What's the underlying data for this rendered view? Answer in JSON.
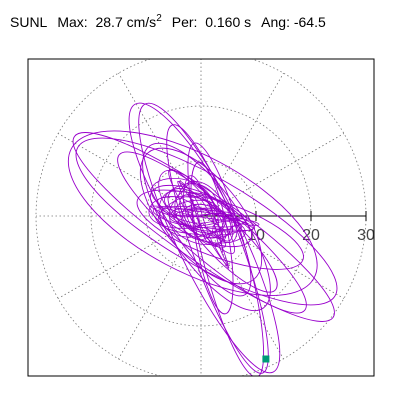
{
  "header": {
    "station": "SUNL",
    "max_label": "Max:",
    "max_value": "28.7",
    "max_unit": "cm/s",
    "max_unit_exp": "2",
    "per_label": "Per:",
    "per_value": "0.160 s",
    "ang_label": "Ang:",
    "ang_value": "-64.5"
  },
  "chart_data": {
    "type": "polar-hodogram",
    "title": "SUNL",
    "radial_ticks": [
      "10",
      "20",
      "30"
    ],
    "radial_tick_values": [
      10,
      20,
      30
    ],
    "r_max": 30,
    "angular_grid_step_deg": 30,
    "grid": true,
    "orbit_color": "#9900cc",
    "marker_color": "#009977",
    "marker_point": [
      11.8,
      -26.0
    ],
    "loops": [
      {
        "angle_deg": -30,
        "a": 27.0,
        "b": 8.0,
        "cx": 1.0,
        "cy": -1.0
      },
      {
        "angle_deg": -35,
        "a": 28.7,
        "b": 6.0,
        "cx": 0.5,
        "cy": -2.0
      },
      {
        "angle_deg": -28,
        "a": 25.0,
        "b": 10.5,
        "cx": -1.5,
        "cy": 0.5
      },
      {
        "angle_deg": -40,
        "a": 22.0,
        "b": 5.0,
        "cx": 2.0,
        "cy": -3.0
      },
      {
        "angle_deg": -64.5,
        "a": 27.0,
        "b": 6.0,
        "cx": 1.5,
        "cy": -4.0
      },
      {
        "angle_deg": -70,
        "a": 24.0,
        "b": 4.5,
        "cx": 3.0,
        "cy": -6.0
      },
      {
        "angle_deg": -75,
        "a": 22.0,
        "b": 4.0,
        "cx": 4.5,
        "cy": -8.0
      },
      {
        "angle_deg": -60,
        "a": 20.0,
        "b": 5.5,
        "cx": -2.0,
        "cy": 3.0
      },
      {
        "angle_deg": -55,
        "a": 18.0,
        "b": 6.5,
        "cx": 1.0,
        "cy": -2.0
      },
      {
        "angle_deg": -50,
        "a": 15.0,
        "b": 7.0,
        "cx": 0.0,
        "cy": 0.0
      },
      {
        "angle_deg": -20,
        "a": 16.0,
        "b": 5.0,
        "cx": 3.5,
        "cy": -2.5
      },
      {
        "angle_deg": -45,
        "a": 12.0,
        "b": 3.5,
        "cx": 5.0,
        "cy": -5.0
      },
      {
        "angle_deg": -80,
        "a": 14.0,
        "b": 3.0,
        "cx": 2.0,
        "cy": -4.0
      },
      {
        "angle_deg": -25,
        "a": 10.0,
        "b": 4.0,
        "cx": 0.0,
        "cy": 0.0
      },
      {
        "angle_deg": -40,
        "a": 6.0,
        "b": 3.0,
        "cx": -1.0,
        "cy": 0.5
      },
      {
        "angle_deg": -15,
        "a": 4.0,
        "b": 2.5,
        "cx": 0.5,
        "cy": -0.5
      }
    ]
  }
}
